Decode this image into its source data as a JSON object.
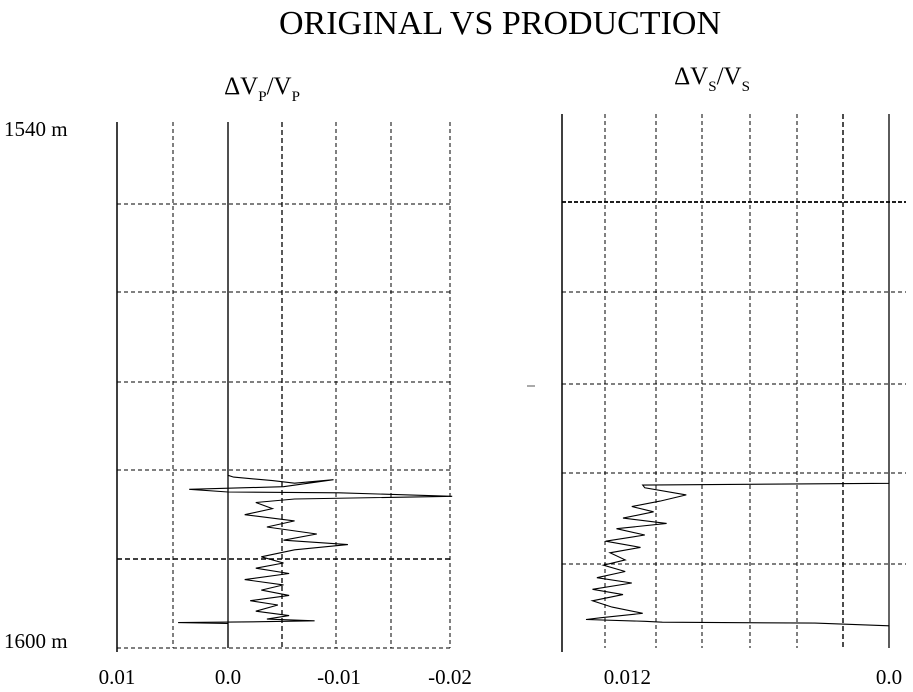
{
  "title": "ORIGINAL VS PRODUCTION",
  "chart_data": [
    {
      "type": "line",
      "title": "ΔVP/VP",
      "title_parts": {
        "prefix": "ΔV",
        "sub1": "P",
        "mid": "/V",
        "sub2": "P"
      },
      "y_axis": {
        "label_top": "1540 m",
        "label_bottom": "1600 m",
        "range": [
          1540,
          1600
        ],
        "direction": "down"
      },
      "x_axis": {
        "range": [
          0.01,
          -0.02
        ],
        "ticks": [
          0.01,
          0.0,
          -0.01,
          -0.02
        ],
        "tick_labels": [
          "0.01",
          "0.0",
          "-0.01",
          "-0.02"
        ]
      },
      "grid": true,
      "series": [
        {
          "x": [
            0.0,
            0.0,
            -0.0005,
            -0.004,
            -0.006,
            -0.0095,
            -0.005,
            0.0035,
            0.0,
            -0.01,
            -0.0202,
            -0.006,
            -0.0025,
            -0.004,
            -0.0015,
            -0.006,
            -0.0035,
            -0.008,
            -0.005,
            -0.0108,
            -0.006,
            -0.003,
            -0.005,
            -0.0025,
            -0.0055,
            -0.0015,
            -0.005,
            -0.003,
            -0.0055,
            -0.002,
            -0.0045,
            -0.0025,
            -0.0055,
            -0.0035,
            -0.0078,
            -0.003,
            0.0045,
            0.0,
            0.0
          ],
          "y": [
            1540,
            1580.3,
            1580.5,
            1580.9,
            1581.2,
            1580.8,
            1581.6,
            1581.9,
            1582.2,
            1582.3,
            1582.7,
            1583.0,
            1583.4,
            1584.1,
            1584.8,
            1585.5,
            1586.2,
            1587.0,
            1587.7,
            1588.2,
            1588.8,
            1589.6,
            1590.3,
            1590.9,
            1591.5,
            1592.2,
            1592.8,
            1593.4,
            1594.0,
            1594.6,
            1595.1,
            1595.8,
            1596.3,
            1596.7,
            1596.9,
            1597.0,
            1597.1,
            1597.2,
            1600
          ]
        }
      ]
    },
    {
      "type": "line",
      "title": "ΔVS/VS",
      "title_parts": {
        "prefix": "ΔV",
        "sub1": "S",
        "mid": "/V",
        "sub2": "S"
      },
      "y_axis": {
        "range": [
          1540,
          1600
        ],
        "direction": "down"
      },
      "x_axis": {
        "range": [
          0.015,
          0.0
        ],
        "ticks": [
          0.012,
          0.0
        ],
        "tick_labels": [
          "0.012",
          "0.0"
        ]
      },
      "grid": true,
      "series": [
        {
          "x": [
            0.0,
            0.0,
            0.0,
            0.0113,
            0.0112,
            0.0093,
            0.0105,
            0.0118,
            0.0108,
            0.0122,
            0.0102,
            0.0125,
            0.0112,
            0.013,
            0.0114,
            0.0128,
            0.0121,
            0.0131,
            0.0121,
            0.0134,
            0.0118,
            0.0136,
            0.0122,
            0.0136,
            0.0127,
            0.0113,
            0.0132,
            0.0139,
            0.0112,
            0.0104,
            0.0034,
            0.0,
            0.0
          ],
          "y": [
            1540,
            1580.5,
            1581.5,
            1581.7,
            1582.0,
            1582.8,
            1583.5,
            1584.1,
            1584.7,
            1585.4,
            1586.0,
            1586.6,
            1587.3,
            1588.0,
            1588.7,
            1589.3,
            1590.1,
            1590.7,
            1591.4,
            1592.1,
            1592.7,
            1593.4,
            1594.0,
            1594.7,
            1595.4,
            1596.1,
            1596.6,
            1596.8,
            1597.0,
            1597.1,
            1597.2,
            1597.5,
            1600
          ]
        }
      ]
    }
  ]
}
